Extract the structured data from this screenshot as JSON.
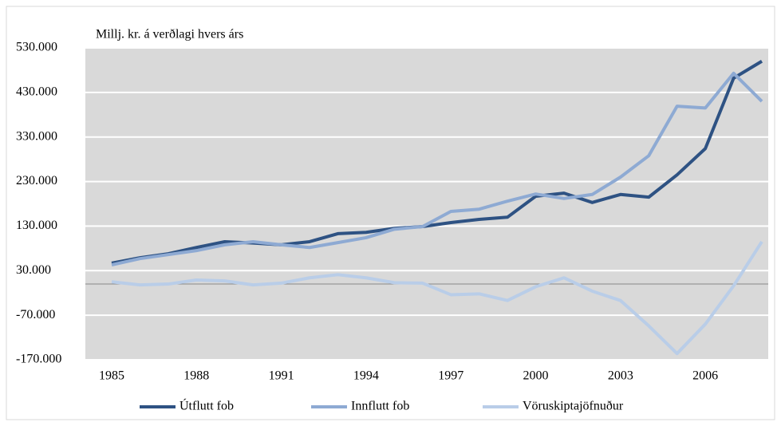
{
  "chart_data": {
    "type": "line",
    "y_label": "Millj. kr. á verðlagi hvers árs",
    "x": [
      1985,
      1986,
      1987,
      1988,
      1989,
      1990,
      1991,
      1992,
      1993,
      1994,
      1995,
      1996,
      1997,
      1998,
      1999,
      2000,
      2001,
      2002,
      2003,
      2004,
      2005,
      2006,
      2007,
      2008
    ],
    "series": [
      {
        "name": "Útflutt fob",
        "color": "#2e5283",
        "values": [
          47000,
          59000,
          68000,
          82000,
          95000,
          92000,
          88000,
          95000,
          113000,
          116000,
          125000,
          129000,
          138000,
          145000,
          150000,
          197000,
          204000,
          183000,
          201000,
          195000,
          245000,
          304000,
          462000,
          500000
        ]
      },
      {
        "name": "Innflutt fob",
        "color": "#8eaad3",
        "values": [
          43000,
          57000,
          66000,
          75000,
          88000,
          95000,
          88000,
          82000,
          93000,
          104000,
          123000,
          129000,
          163000,
          168000,
          186000,
          202000,
          192000,
          201000,
          240000,
          288000,
          399000,
          395000,
          473000,
          410000
        ]
      },
      {
        "name": "Vöruskiptajöfnuður",
        "color": "#b9cde8",
        "values": [
          5000,
          -2000,
          0,
          9000,
          7000,
          -2000,
          2000,
          14000,
          21000,
          14000,
          3000,
          2000,
          -24000,
          -22000,
          -37000,
          -6000,
          14000,
          -16000,
          -37000,
          -94000,
          -156000,
          -90000,
          -4000,
          95000
        ]
      }
    ],
    "xlim": [
      1985,
      2008
    ],
    "xticks": [
      1985,
      1988,
      1991,
      1994,
      1997,
      2000,
      2003,
      2006
    ],
    "ylim": [
      -170000,
      530000
    ],
    "yticks": [
      {
        "value": -170000,
        "label": "-170.000"
      },
      {
        "value": -70000,
        "label": "-70.000"
      },
      {
        "value": 30000,
        "label": "30.000"
      },
      {
        "value": 130000,
        "label": "130.000"
      },
      {
        "value": 230000,
        "label": "230.000"
      },
      {
        "value": 330000,
        "label": "330.000"
      },
      {
        "value": 430000,
        "label": "430.000"
      },
      {
        "value": 530000,
        "label": "530.000"
      }
    ],
    "grid": true,
    "legend": "bottom"
  }
}
